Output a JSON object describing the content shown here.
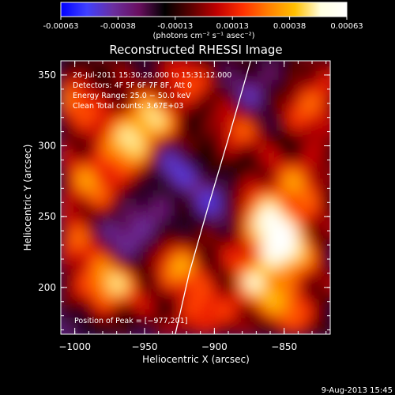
{
  "colorbar": {
    "ticks": [
      "-0.00063",
      "-0.00038",
      "-0.00013",
      "0.00013",
      "0.00038",
      "0.00063"
    ],
    "unit_label": "(photons cm⁻² s⁻¹ asec⁻²)",
    "stops": [
      "#0000ff",
      "#4040ff",
      "#6a2fa0",
      "#6a0f60",
      "#000000",
      "#5a0000",
      "#c00000",
      "#ff3000",
      "#ff8000",
      "#ffc000",
      "#ffffe0",
      "#ffffff"
    ]
  },
  "chart_data": {
    "type": "heatmap",
    "title": "Reconstructed RHESSI Image",
    "xlabel": "Heliocentric X (arcsec)",
    "ylabel": "Heliocentric Y (arcsec)",
    "xlim": [
      -1010,
      -817
    ],
    "ylim": [
      167,
      360
    ],
    "xticks": [
      -1000,
      -950,
      -900,
      -850
    ],
    "yticks": [
      200,
      250,
      300,
      350
    ],
    "xtick_labels": [
      "−1000",
      "−950",
      "−900",
      "−850"
    ],
    "ytick_labels": [
      "200",
      "250",
      "300",
      "350"
    ],
    "annotations": [
      "26-Jul-2011 15:30:28.000 to 15:31:12.000",
      "Detectors: 4F 5F 6F 7F 8F, Att 0",
      "Energy Range: 25.0 − 50.0 keV",
      "Clean    Total counts: 3.67E+03"
    ],
    "peak_label": "Position of Peak = [−977,201]",
    "peak": [
      -977,
      201
    ],
    "limb_curve": [
      [
        -928,
        167
      ],
      [
        -918,
        210
      ],
      [
        -905,
        255
      ],
      [
        -890,
        305
      ],
      [
        -874,
        360
      ]
    ],
    "intensity_range": [
      -0.00063,
      0.00063
    ]
  },
  "footer": {
    "timestamp": "9-Aug-2013 15:45"
  }
}
